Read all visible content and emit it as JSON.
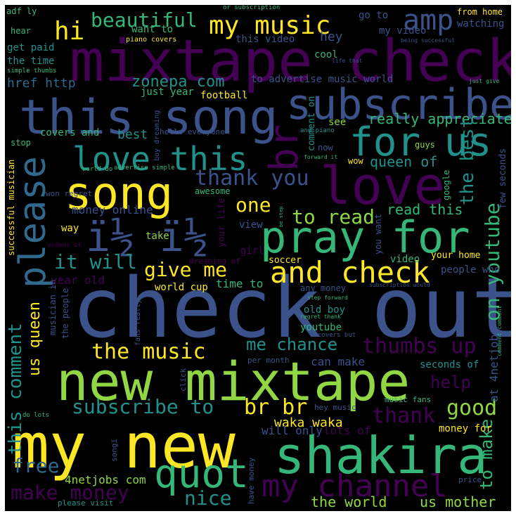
{
  "palette": {
    "purple": "#440154",
    "indigo": "#3b528b",
    "blue": "#31688e",
    "teal": "#21918c",
    "green": "#35b779",
    "lime": "#90d743",
    "yellow": "#fde725",
    "background": "#000000",
    "frame": "#ffffff"
  },
  "words": {
    "check_out": "check out",
    "mixtape_check": "mixtape check",
    "new_mixtape": "new mixtape",
    "my_new": "my new",
    "this_song": "this song",
    "subscribe": "subscribe",
    "shakira": "shakira",
    "song": "song",
    "love": "love",
    "pray_for": "pray for",
    "please": "please",
    "for_us": "for us",
    "love_this": "love this",
    "i_half": "ï½ ï½",
    "br": "br",
    "and_check": "and check",
    "quot": "quot",
    "my_channel": "my channel",
    "my_music": "my music",
    "amp": "amp",
    "beautiful": "beautiful",
    "hi": "hi",
    "zonepa_com": "zonepa com",
    "href_http": "href http",
    "thank_you": "thank you",
    "one": "one",
    "to_read": "to read",
    "the_music": "the music",
    "give_me": "give me",
    "it_will": "it will",
    "me_chance": "me chance",
    "thumbs_up": "thumbs up",
    "subscribe_to": "subscribe to",
    "br_br": "br br",
    "good": "good",
    "thank": "thank",
    "make_money": "make money",
    "nice": "nice",
    "free": "free",
    "help": "help",
    "the_world": "the world",
    "us_mother": "us mother",
    "waka_waka": "waka waka",
    "really_appreciate": "really appreciate",
    "queen_of": "queen of",
    "read_this": "read this",
    "the_best": "the best",
    "on_youtube": "on youtube",
    "us_queen": "us queen",
    "this_comment": "this comment",
    "to_make": "to make",
    "at_4netjobs": "at 4netjobs",
    "four_netjobs_com": "4netjobs com",
    "money_online": "money online",
    "year_old": "year old",
    "world_cup": "world cup",
    "time_to": "time to",
    "old_boy": "old boy",
    "youtube": "youtube",
    "seconds_of": "seconds of",
    "can_make": "can make",
    "will_only": "will only",
    "lots_of": "lots of",
    "money_for": "money for",
    "people_who": "people who",
    "your_home": "your home",
    "video": "video",
    "soccer": "soccer",
    "any_money": "any money",
    "awesome": "awesome",
    "take": "take",
    "way": "way",
    "view": "view",
    "girl": "girl",
    "your_life": "your life",
    "successful_musician": "successful musician",
    "covers_and": "covers and",
    "best": "best",
    "stop": "stop",
    "hello_everyone": "hello everyone",
    "boy_dreaming": "boy dreaming",
    "see": "see",
    "guys": "guys",
    "wow": "wow",
    "now": "now",
    "google": "google",
    "few_seconds": "few seconds",
    "comment_on": "comment on",
    "football": "football",
    "just_year": "just year",
    "to_advertise_music_world": "to advertise music world",
    "cool": "cool",
    "hey": "hey",
    "this_video": "this video",
    "my_video": "my video",
    "go_to": "go to",
    "from_home": "from home",
    "watching": "watching",
    "want_to": "want to",
    "piano_covers": "piano covers",
    "adf_ly": "adf ly",
    "hear": "hear",
    "get_paid": "get paid",
    "the_time": "the time",
    "simple_thumbs": "simple thumbs",
    "or_subscription": "or subscription",
    "being_successful": "being successful",
    "life_that": "life that",
    "just_give": "just give",
    "and_piano": "and piano",
    "forward_it": "forward it",
    "world_do": "world do",
    "advertise_simple": "advertise simple",
    "won_regret": "won regret",
    "comment_comment": "comment comment",
    "subscription_would": "subscription would",
    "step_forward": "step forward",
    "regret_thank": "regret thank",
    "covers_but": "covers but",
    "per_month": "per month",
    "hey_music": "hey music",
    "music_fans": "music fans",
    "price": "price",
    "have_money": "have money",
    "please_visit": "please visit",
    "do_lots": "do lots",
    "songi": "songï",
    "click": "click",
    "musician_in": "musician in",
    "the_people": "the people",
    "fans_really": "fans really",
    "you_want": "you want",
    "be_step": "be step",
    "dreaming_of": "dreaming of",
    "videos_or": "videos or"
  }
}
